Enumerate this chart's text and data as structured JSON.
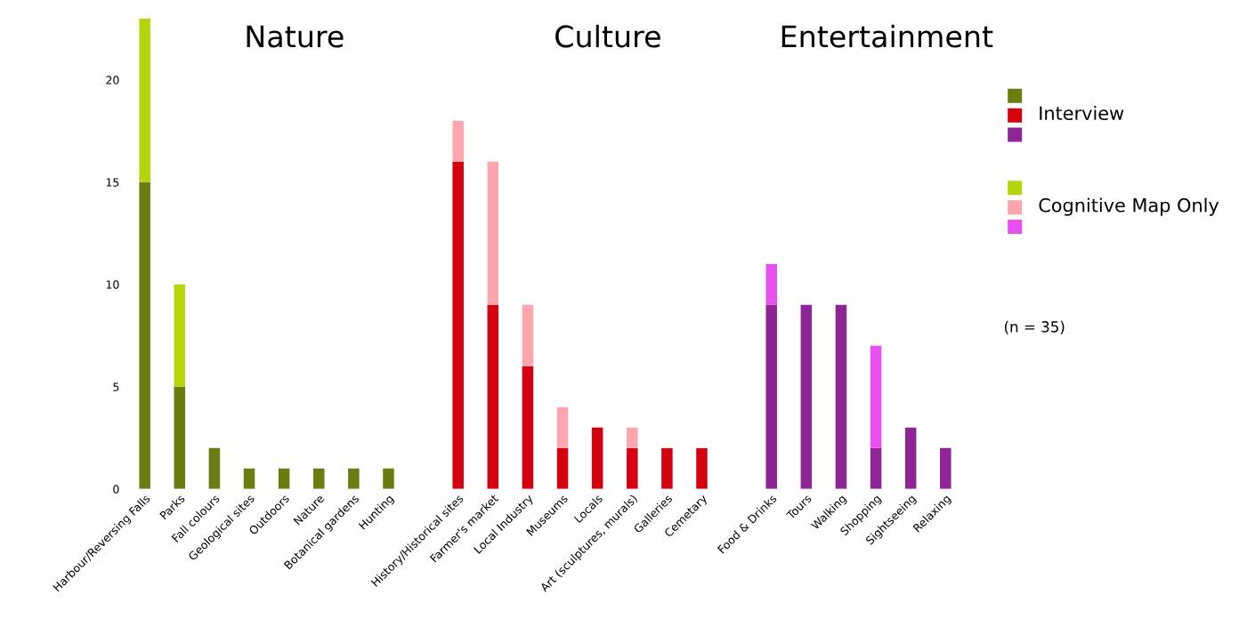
{
  "chart_data": {
    "type": "bar",
    "stacked": true,
    "categories": [
      "Harbour/Reversing Falls",
      "Parks",
      "Fall colours",
      "Geological sites",
      "Outdoors",
      "Nature",
      "Botanical gardens",
      "Hunting",
      null,
      "History/Historical sites",
      "Farmer's market",
      "Local Industry",
      "Museums",
      "Locals",
      "Art (sculptures, murals)",
      "Galleries",
      "Cemetary",
      null,
      "Food & Drinks",
      "Tours",
      "Walking",
      "Shopping",
      "Sightseeing",
      "Relaxing"
    ],
    "series": [
      {
        "name": "Interview",
        "values": [
          15,
          5,
          2,
          1,
          1,
          1,
          1,
          1,
          null,
          16,
          9,
          6,
          2,
          3,
          2,
          2,
          2,
          null,
          9,
          9,
          9,
          2,
          3,
          2
        ],
        "colors": [
          "#6b7d10",
          "#6b7d10",
          "#6b7d10",
          "#6b7d10",
          "#6b7d10",
          "#6b7d10",
          "#6b7d10",
          "#6b7d10",
          null,
          "#d40010",
          "#d40010",
          "#d40010",
          "#d40010",
          "#d40010",
          "#d40010",
          "#d40010",
          "#d40010",
          null,
          "#8e2496",
          "#8e2496",
          "#8e2496",
          "#8e2496",
          "#8e2496",
          "#8e2496"
        ]
      },
      {
        "name": "Cognitive Map Only",
        "values": [
          8,
          5,
          null,
          null,
          null,
          null,
          null,
          null,
          null,
          2,
          7,
          3,
          2,
          null,
          1,
          null,
          null,
          null,
          2,
          null,
          null,
          5,
          null,
          null
        ],
        "colors": [
          "#b5d40a",
          "#b5d40a",
          "#b5d40a",
          "#b5d40a",
          "#b5d40a",
          "#b5d40a",
          "#b5d40a",
          "#b5d40a",
          null,
          "#ffa5ad",
          "#ffa5ad",
          "#ffa5ad",
          "#ffa5ad",
          "#ffa5ad",
          "#ffa5ad",
          "#ffa5ad",
          "#ffa5ad",
          null,
          "#e84ff0",
          "#e84ff0",
          "#e84ff0",
          "#e84ff0",
          "#e84ff0",
          "#e84ff0"
        ]
      }
    ],
    "ylim": [
      0,
      23
    ],
    "yticks": [
      0,
      5,
      10,
      15,
      20
    ],
    "grid": false,
    "legend": "right",
    "annotations": [
      "Nature",
      "Culture",
      "Entertainment",
      "(n = 35)"
    ]
  }
}
